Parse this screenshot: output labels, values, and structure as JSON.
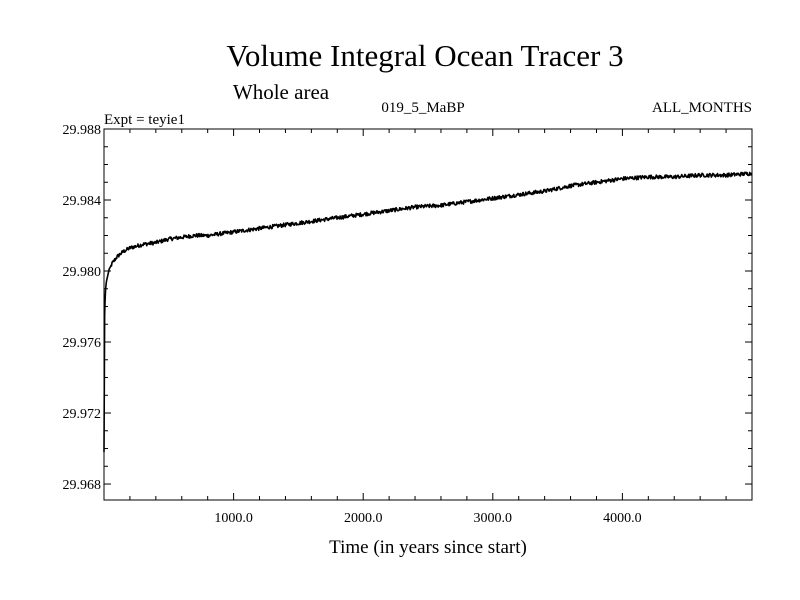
{
  "chart_data": {
    "type": "line",
    "title": "Volume Integral Ocean Tracer 3",
    "subtitle": "Whole area",
    "expt_label": "Expt = teyie1",
    "run_label": "019_5_MaBP",
    "period_label": "ALL_MONTHS",
    "xlabel": "Time (in years since start)",
    "ylabel": "",
    "xlim": [
      0,
      5000
    ],
    "ylim": [
      29.9671,
      29.988
    ],
    "x_ticks": [
      1000,
      2000,
      3000,
      4000
    ],
    "x_tick_labels": [
      "1000.0",
      "2000.0",
      "3000.0",
      "4000.0"
    ],
    "y_ticks": [
      29.968,
      29.972,
      29.976,
      29.98,
      29.984,
      29.988
    ],
    "y_tick_labels": [
      "29.968",
      "29.972",
      "29.976",
      "29.980",
      "29.984",
      "29.988"
    ],
    "grid": false,
    "legend": "none",
    "series": [
      {
        "color": "#000000",
        "x": [
          0,
          5,
          10,
          20,
          40,
          60,
          100,
          150,
          200,
          300,
          400,
          500,
          600,
          700,
          800,
          900,
          1000,
          1200,
          1400,
          1600,
          1800,
          2000,
          2200,
          2400,
          2600,
          2800,
          3000,
          3200,
          3400,
          3600,
          3800,
          4000,
          4200,
          4400,
          4600,
          4800,
          5000
        ],
        "y": [
          29.9698,
          29.9775,
          29.9788,
          29.9795,
          29.98,
          29.9804,
          29.9808,
          29.9811,
          29.9813,
          29.9815,
          29.9816,
          29.9818,
          29.9819,
          29.982,
          29.982,
          29.9821,
          29.9822,
          29.9824,
          29.9826,
          29.9828,
          29.983,
          29.9832,
          29.9834,
          29.9836,
          29.9837,
          29.9839,
          29.9841,
          29.9843,
          29.9845,
          29.9848,
          29.985,
          29.9852,
          29.9853,
          29.9853,
          29.9854,
          29.9854,
          29.9855
        ]
      }
    ]
  }
}
